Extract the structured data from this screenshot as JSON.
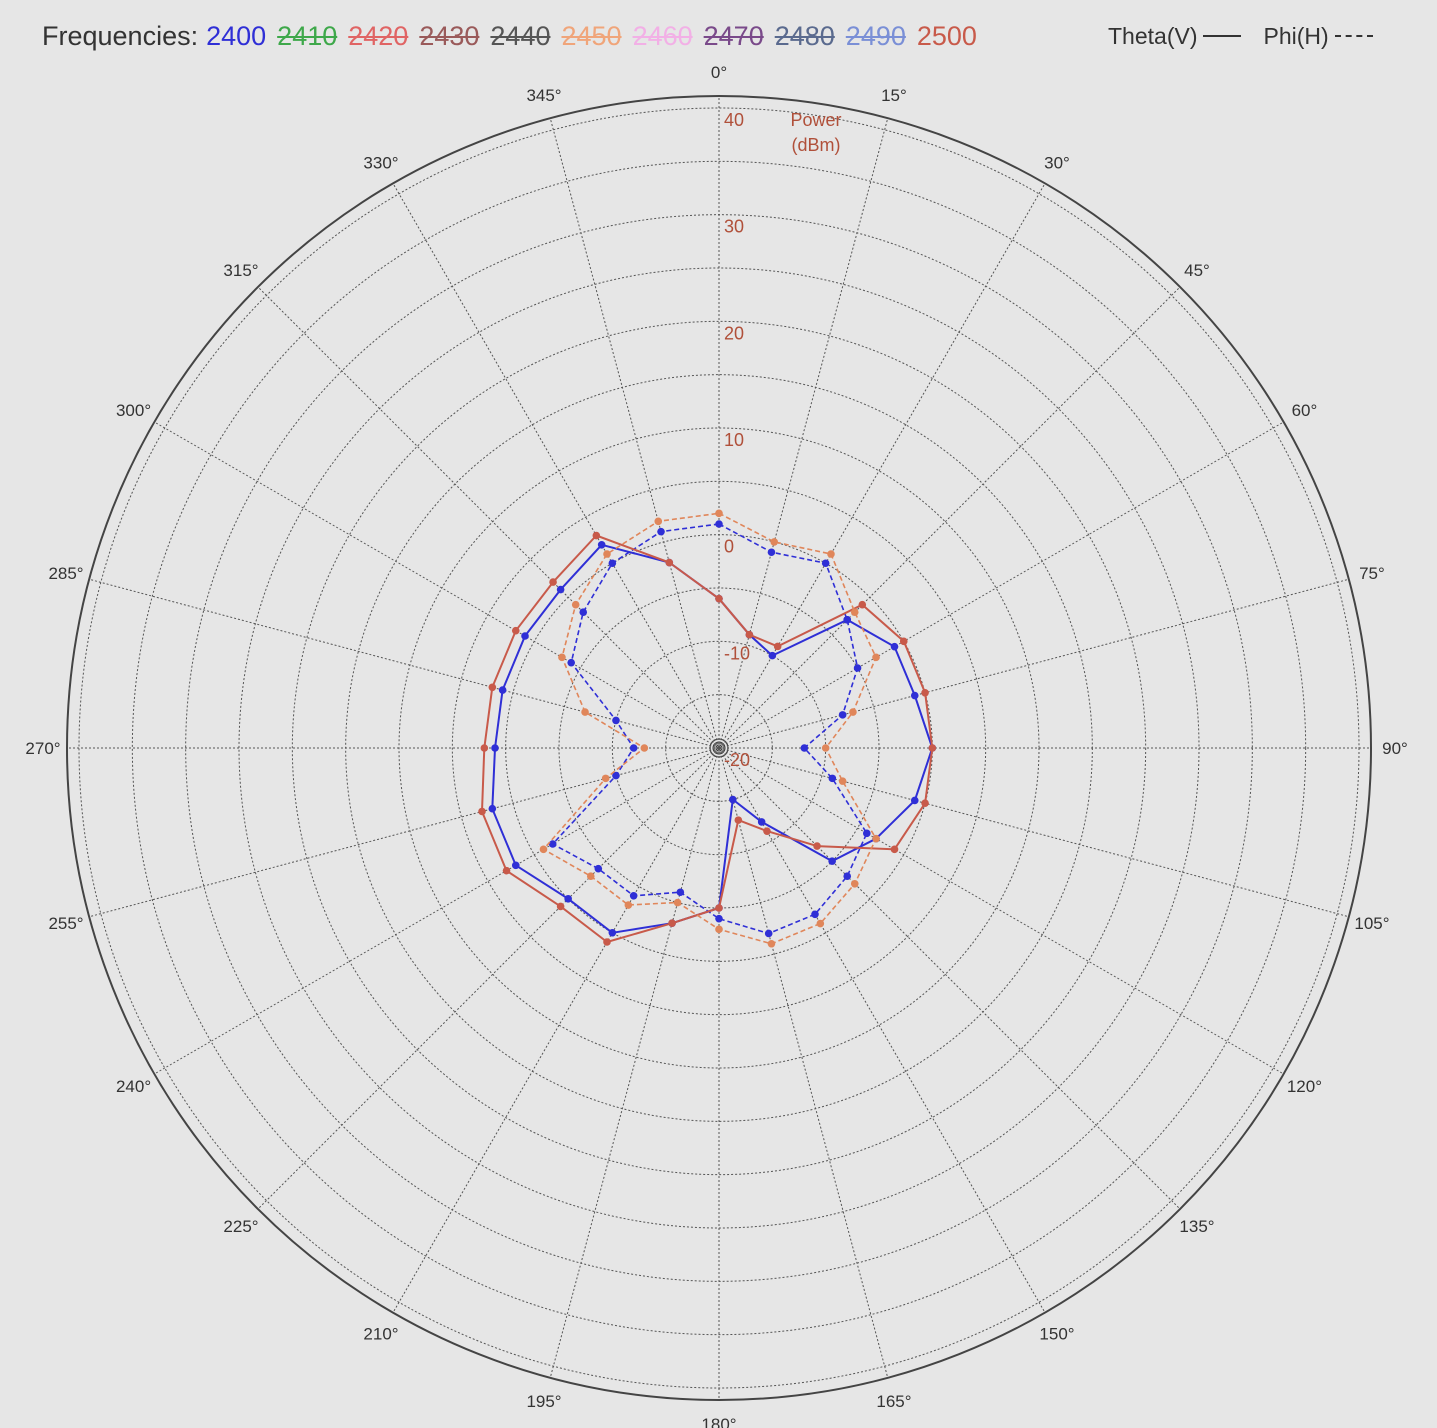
{
  "legend": {
    "frequencies_label": "Frequencies:",
    "frequencies": [
      {
        "value": "2400",
        "color": "#2f2fd6",
        "struck": false
      },
      {
        "value": "2410",
        "color": "#3ea84a",
        "struck": true
      },
      {
        "value": "2420",
        "color": "#e06464",
        "struck": true
      },
      {
        "value": "2430",
        "color": "#9a5a5a",
        "struck": true
      },
      {
        "value": "2440",
        "color": "#555555",
        "struck": true
      },
      {
        "value": "2450",
        "color": "#f0a57a",
        "struck": true
      },
      {
        "value": "2460",
        "color": "#f2b0e6",
        "struck": true
      },
      {
        "value": "2470",
        "color": "#7a4a8a",
        "struck": true
      },
      {
        "value": "2480",
        "color": "#5a6a8e",
        "struck": true
      },
      {
        "value": "2490",
        "color": "#7a8fd6",
        "struck": true
      },
      {
        "value": "2500",
        "color": "#c85a4a",
        "struck": false
      }
    ],
    "theta_label": "Theta(V)",
    "phi_label": "Phi(H)"
  },
  "chart_data": {
    "type": "polar",
    "radial_label_line1": "Power",
    "radial_label_line2": "(dBm)",
    "radial_range": [
      -20,
      40
    ],
    "radial_ticks": [
      40,
      30,
      20,
      10,
      0,
      -10,
      -20
    ],
    "angle_ticks": [
      "0°",
      "15°",
      "30°",
      "45°",
      "60°",
      "75°",
      "90°",
      "105°",
      "120°",
      "135°",
      "150°",
      "165°",
      "180°",
      "195°",
      "210°",
      "225°",
      "240°",
      "255°",
      "270°",
      "285°",
      "300°",
      "315°",
      "330°",
      "345°"
    ],
    "grid": true,
    "angles": [
      0,
      15,
      30,
      45,
      60,
      75,
      90,
      105,
      120,
      135,
      150,
      165,
      180,
      195,
      210,
      225,
      240,
      255,
      270,
      285,
      300,
      315,
      330,
      345
    ],
    "series": [
      {
        "name": "2400",
        "polarization": "Theta(V)",
        "color": "#2f2fd6",
        "dash": false,
        "values": [
          -6,
          -9,
          -10,
          -3,
          -1,
          -1,
          0,
          -1,
          -3,
          -5,
          -12,
          -15,
          -5,
          -3,
          0,
          0,
          2,
          2,
          1,
          1,
          1,
          1,
          2,
          -2
        ]
      },
      {
        "name": "2400",
        "polarization": "Phi(H)",
        "color": "#2f2fd6",
        "dash": true,
        "values": [
          1,
          -1,
          0,
          -3,
          -5,
          -8,
          -12,
          -9,
          -4,
          -3,
          -2,
          -2,
          -4,
          -6,
          -4,
          -4,
          -2,
          -10,
          -12,
          -10,
          -4,
          -2,
          0,
          1
        ]
      },
      {
        "name": "2500",
        "polarization": "Theta(V)",
        "color": "#c85a4a",
        "dash": false,
        "values": [
          -6,
          -9,
          -9,
          -1,
          0,
          0,
          0,
          0,
          -1,
          -7,
          -11,
          -13,
          -5,
          -3,
          1,
          1,
          3,
          3,
          2,
          2,
          2,
          2,
          3,
          -2
        ]
      },
      {
        "name": "2500",
        "polarization": "Phi(H)",
        "color": "#e0865a",
        "dash": true,
        "values": [
          2,
          0,
          1,
          -2,
          -3,
          -7,
          -10,
          -8,
          -3,
          -2,
          -1,
          -1,
          -3,
          -5,
          -3,
          -3,
          -1,
          -9,
          -13,
          -7,
          -3,
          -1,
          1,
          2
        ]
      }
    ]
  }
}
